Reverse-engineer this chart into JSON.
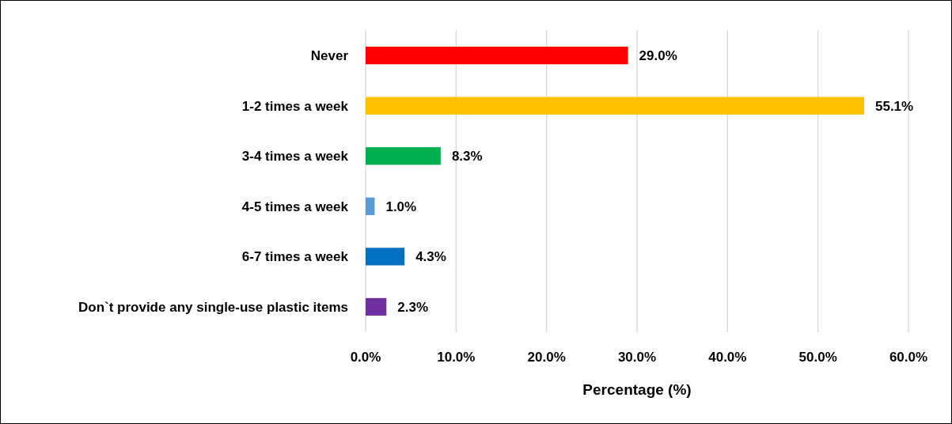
{
  "chart_data": {
    "type": "bar",
    "orientation": "horizontal",
    "xlabel": "Percentage (%)",
    "categories": [
      "Never",
      "1-2 times a week",
      "3-4 times a week",
      "4-5 times a week",
      "6-7 times a week",
      "Don`t provide any single-use plastic items"
    ],
    "values": [
      29.0,
      55.1,
      8.3,
      1.0,
      4.3,
      2.3
    ],
    "colors": [
      "#ff0000",
      "#ffc000",
      "#00b050",
      "#5b9bd5",
      "#0070c0",
      "#7030a0"
    ],
    "value_labels": [
      "29.0%",
      "55.1%",
      "8.3%",
      "1.0%",
      "4.3%",
      "2.3%"
    ],
    "xlim": [
      0,
      60
    ],
    "xticks": [
      {
        "value": 0,
        "label": "0.0%"
      },
      {
        "value": 10,
        "label": "10.0%"
      },
      {
        "value": 20,
        "label": "20.0%"
      },
      {
        "value": 30,
        "label": "30.0%"
      },
      {
        "value": 40,
        "label": "40.0%"
      },
      {
        "value": 50,
        "label": "50.0%"
      },
      {
        "value": 60,
        "label": "60.0%"
      }
    ],
    "grid": true
  }
}
